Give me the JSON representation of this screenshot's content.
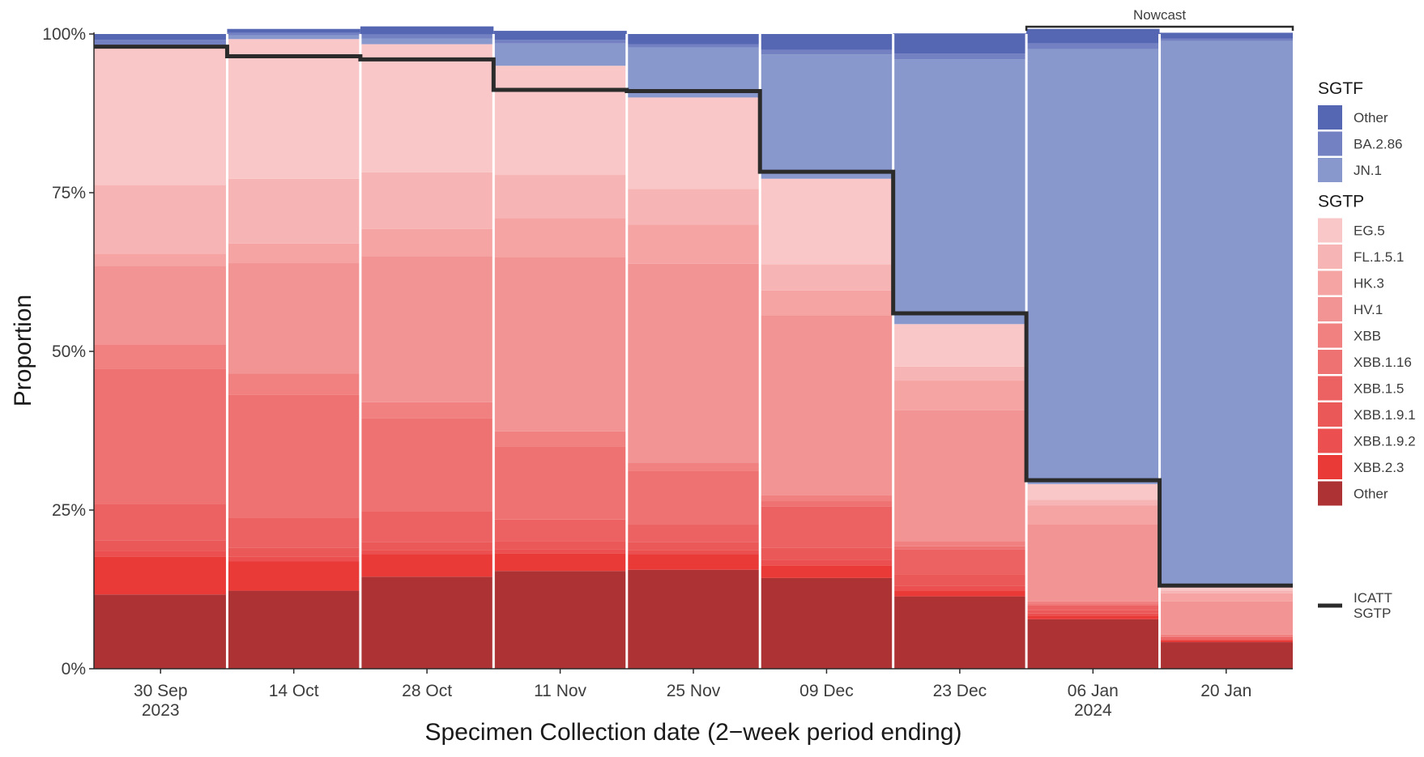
{
  "chart_data": {
    "type": "bar",
    "stacked": true,
    "xlabel": "Specimen Collection date (2−week period ending)",
    "ylabel": "Proportion",
    "ylim": [
      0,
      100
    ],
    "y_ticks": [
      "0%",
      "25%",
      "50%",
      "75%",
      "100%"
    ],
    "categories": [
      [
        "30 Sep",
        "2023"
      ],
      [
        "14 Oct",
        ""
      ],
      [
        "28 Oct",
        ""
      ],
      [
        "11 Nov",
        ""
      ],
      [
        "25 Nov",
        ""
      ],
      [
        "09 Dec",
        ""
      ],
      [
        "23 Dec",
        ""
      ],
      [
        "06 Jan",
        "2024"
      ],
      [
        "20 Jan",
        ""
      ]
    ],
    "series": [
      {
        "name": "Other",
        "group": "SGTP",
        "color": "#ad3234",
        "values": [
          11.7,
          12.3,
          14.5,
          15.4,
          15.6,
          14.3,
          11.4,
          7.8,
          4.2
        ]
      },
      {
        "name": "XBB.2.3",
        "group": "SGTP",
        "color": "#e93a38",
        "values": [
          6.0,
          4.6,
          3.6,
          2.8,
          2.5,
          2.0,
          0.9,
          0.6,
          0.3
        ]
      },
      {
        "name": "XBB.1.9.2",
        "group": "SGTP",
        "color": "#eb4f4f",
        "values": [
          0.8,
          0.8,
          0.6,
          0.6,
          0.6,
          0.8,
          0.8,
          0.3,
          0.1
        ]
      },
      {
        "name": "XBB.1.9.1",
        "group": "SGTP",
        "color": "#ea5858",
        "values": [
          1.7,
          1.4,
          1.3,
          1.3,
          1.3,
          2.0,
          1.7,
          0.5,
          0.2
        ]
      },
      {
        "name": "XBB.1.5",
        "group": "SGTP",
        "color": "#ec6262",
        "values": [
          5.8,
          4.7,
          4.8,
          3.4,
          2.7,
          6.5,
          4.0,
          0.8,
          0.2
        ]
      },
      {
        "name": "XBB.1.16",
        "group": "SGTP",
        "color": "#ef7272",
        "values": [
          21.3,
          19.4,
          14.7,
          11.5,
          8.5,
          0.8,
          0.5,
          0.2,
          0.1
        ]
      },
      {
        "name": "XBB",
        "group": "SGTP",
        "color": "#f18080",
        "values": [
          3.8,
          3.3,
          2.5,
          2.4,
          1.3,
          0.9,
          0.8,
          0.4,
          0.3
        ]
      },
      {
        "name": "HV.1",
        "group": "SGTP",
        "color": "#f39494",
        "values": [
          12.4,
          17.4,
          23.0,
          27.5,
          31.3,
          28.4,
          20.6,
          12.2,
          5.2
        ]
      },
      {
        "name": "HK.3",
        "group": "SGTP",
        "color": "#f5a3a3",
        "values": [
          1.9,
          3.1,
          4.3,
          6.1,
          6.2,
          3.9,
          4.7,
          2.9,
          1.3
        ]
      },
      {
        "name": "FL.1.5.1",
        "group": "SGTP",
        "color": "#f7b4b4",
        "values": [
          10.8,
          10.2,
          8.9,
          6.8,
          5.6,
          4.1,
          2.2,
          0.9,
          0.4
        ]
      },
      {
        "name": "EG.5",
        "group": "SGTP",
        "color": "#f9c7c7",
        "values": [
          21.6,
          22.0,
          20.2,
          17.2,
          14.4,
          13.5,
          6.7,
          2.5,
          0.8
        ]
      },
      {
        "name": "JN.1",
        "group": "SGTF",
        "color": "#8897cc",
        "values": [
          0.5,
          0.6,
          0.9,
          3.5,
          7.9,
          19.6,
          41.7,
          68.5,
          85.8
        ]
      },
      {
        "name": "BA.2.86",
        "group": "SGTF",
        "color": "#7381c3",
        "values": [
          0.8,
          0.4,
          0.6,
          0.6,
          0.5,
          0.7,
          0.9,
          0.9,
          0.4
        ]
      },
      {
        "name": "Other",
        "group": "SGTF",
        "color": "#5566b3",
        "values": [
          0.9,
          0.6,
          1.3,
          1.4,
          1.6,
          2.5,
          3.2,
          2.3,
          0.9
        ]
      }
    ],
    "line_series": {
      "name": "ICATT SGTP",
      "label": [
        "ICATT",
        "SGTP"
      ],
      "color": "#2b2b2b",
      "values": [
        98.0,
        96.5,
        96.0,
        91.2,
        91.0,
        78.3,
        56.0,
        29.7,
        13.1
      ]
    },
    "legend": {
      "placement": "right",
      "groups": [
        {
          "title": "SGTF",
          "items": [
            {
              "label": "Other",
              "color": "#5566b3"
            },
            {
              "label": "BA.2.86",
              "color": "#7381c3"
            },
            {
              "label": "JN.1",
              "color": "#8897cc"
            }
          ]
        },
        {
          "title": "SGTP",
          "items": [
            {
              "label": "EG.5",
              "color": "#f9c7c7"
            },
            {
              "label": "FL.1.5.1",
              "color": "#f7b4b4"
            },
            {
              "label": "HK.3",
              "color": "#f5a3a3"
            },
            {
              "label": "HV.1",
              "color": "#f39494"
            },
            {
              "label": "XBB",
              "color": "#f18080"
            },
            {
              "label": "XBB.1.16",
              "color": "#ef7272"
            },
            {
              "label": "XBB.1.5",
              "color": "#ec6262"
            },
            {
              "label": "XBB.1.9.1",
              "color": "#ea5858"
            },
            {
              "label": "XBB.1.9.2",
              "color": "#eb4f4f"
            },
            {
              "label": "XBB.2.3",
              "color": "#e93a38"
            },
            {
              "label": "Other",
              "color": "#ad3234"
            }
          ]
        }
      ]
    },
    "annotation": {
      "label": "Nowcast",
      "span_categories": [
        "06 Jan",
        "20 Jan"
      ]
    },
    "grid": false
  }
}
